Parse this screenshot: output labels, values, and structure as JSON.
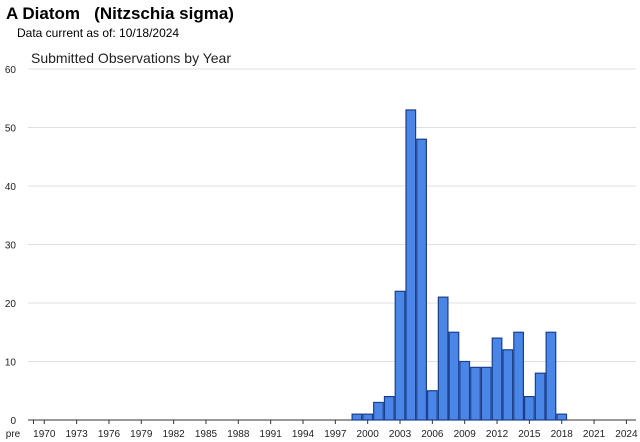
{
  "header": {
    "title": "A Diatom   (Nitzschia sigma)",
    "subtitle": "Data current as of: 10/18/2024"
  },
  "chart_data": {
    "type": "bar",
    "title": "Submitted Observations by Year",
    "xlabel": "",
    "ylabel": "",
    "ylim": [
      0,
      60
    ],
    "yticks": [
      0,
      10,
      20,
      30,
      40,
      50,
      60
    ],
    "xtick_labels": [
      "pre",
      "1970",
      "1973",
      "1976",
      "1979",
      "1982",
      "1985",
      "1988",
      "1991",
      "1994",
      "1997",
      "2000",
      "2003",
      "2006",
      "2009",
      "2012",
      "2015",
      "2018",
      "2021",
      "2024"
    ],
    "categories": [
      "pre",
      "1970",
      "1971",
      "1972",
      "1973",
      "1974",
      "1975",
      "1976",
      "1977",
      "1978",
      "1979",
      "1980",
      "1981",
      "1982",
      "1983",
      "1984",
      "1985",
      "1986",
      "1987",
      "1988",
      "1989",
      "1990",
      "1991",
      "1992",
      "1993",
      "1994",
      "1995",
      "1996",
      "1997",
      "1998",
      "1999",
      "2000",
      "2001",
      "2002",
      "2003",
      "2004",
      "2005",
      "2006",
      "2007",
      "2008",
      "2009",
      "2010",
      "2011",
      "2012",
      "2013",
      "2014",
      "2015",
      "2016",
      "2017",
      "2018",
      "2019",
      "2020",
      "2021",
      "2022",
      "2023",
      "2024"
    ],
    "values": [
      0,
      0,
      0,
      0,
      0,
      0,
      0,
      0,
      0,
      0,
      0,
      0,
      0,
      0,
      0,
      0,
      0,
      0,
      0,
      0,
      0,
      0,
      0,
      0,
      0,
      0,
      0,
      0,
      0,
      0,
      1,
      1,
      3,
      4,
      22,
      53,
      48,
      5,
      21,
      15,
      10,
      9,
      9,
      14,
      12,
      15,
      4,
      8,
      15,
      1,
      0,
      0,
      0,
      0,
      0,
      0
    ],
    "grid": true,
    "legend": "none",
    "colors": {
      "bar_fill": "#4a86e8",
      "bar_stroke": "#1a3f8c",
      "grid": "#e0e0e0",
      "axis": "#333333"
    }
  }
}
